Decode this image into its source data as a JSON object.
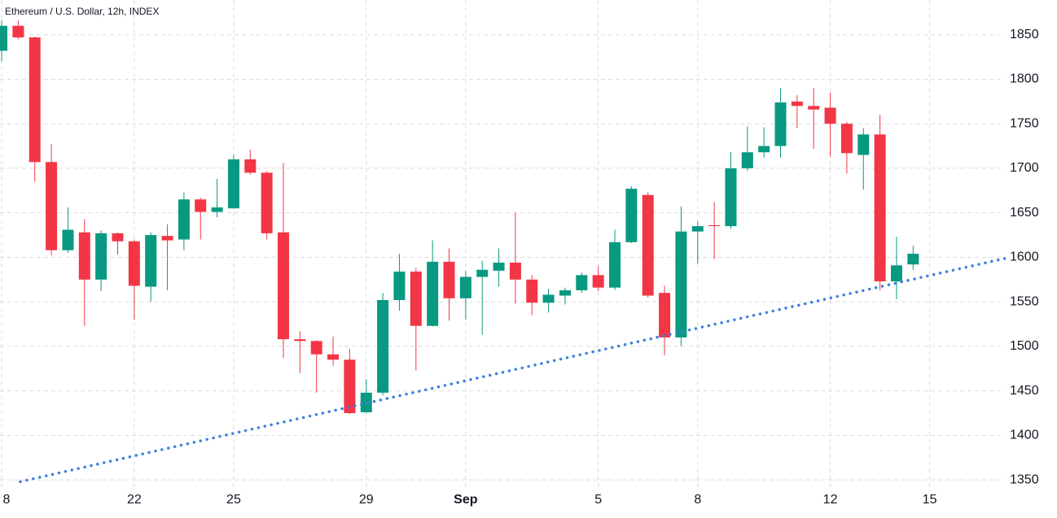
{
  "chart_data": {
    "type": "candlestick",
    "title": "Ethereum / U.S. Dollar, 12h, INDEX",
    "up_color": "#089981",
    "down_color": "#f23645",
    "x": [
      0,
      1,
      2,
      3,
      4,
      5,
      6,
      7,
      8,
      9,
      10,
      11,
      12,
      13,
      14,
      15,
      16,
      17,
      18,
      19,
      20,
      21,
      22,
      23,
      24,
      25,
      26,
      27,
      28,
      29,
      30,
      31,
      32,
      33,
      34,
      35,
      36,
      37,
      38,
      39,
      40,
      41,
      42,
      43,
      44,
      45,
      46,
      47,
      48,
      49,
      50,
      51,
      52,
      53,
      54,
      55
    ],
    "open": [
      1832,
      1860,
      1847,
      1707,
      1608,
      1628,
      1575,
      1627,
      1618,
      1567,
      1624,
      1620,
      1665,
      1651,
      1655,
      1710,
      1695,
      1628,
      1508,
      1506,
      1491,
      1485,
      1426,
      1448,
      1552,
      1584,
      1523,
      1595,
      1554,
      1578,
      1585,
      1594,
      1575,
      1549,
      1557,
      1563,
      1580,
      1566,
      1617,
      1670,
      1560,
      1510,
      1629,
      1636,
      1635,
      1700,
      1718,
      1725,
      1775,
      1770,
      1768,
      1750,
      1715,
      1738,
      1573,
      1592
    ],
    "high": [
      1866,
      1866,
      1848,
      1727,
      1656,
      1643,
      1630,
      1628,
      1620,
      1628,
      1637,
      1673,
      1667,
      1688,
      1715,
      1721,
      1697,
      1706,
      1517,
      1507,
      1511,
      1497,
      1463,
      1560,
      1604,
      1588,
      1619,
      1610,
      1585,
      1596,
      1610,
      1650,
      1580,
      1565,
      1566,
      1583,
      1590,
      1631,
      1680,
      1673,
      1568,
      1657,
      1640,
      1662,
      1718,
      1747,
      1746,
      1790,
      1782,
      1790,
      1785,
      1752,
      1745,
      1760,
      1623,
      1613
    ],
    "low": [
      1820,
      1845,
      1685,
      1602,
      1605,
      1523,
      1562,
      1603,
      1530,
      1550,
      1563,
      1608,
      1620,
      1645,
      1655,
      1693,
      1620,
      1487,
      1470,
      1448,
      1478,
      1424,
      1425,
      1445,
      1540,
      1473,
      1522,
      1529,
      1530,
      1513,
      1567,
      1548,
      1535,
      1538,
      1547,
      1560,
      1562,
      1563,
      1616,
      1555,
      1490,
      1500,
      1593,
      1598,
      1632,
      1697,
      1712,
      1712,
      1745,
      1722,
      1713,
      1694,
      1676,
      1563,
      1553,
      1586
    ],
    "close": [
      1860,
      1847,
      1707,
      1608,
      1631,
      1575,
      1627,
      1618,
      1568,
      1625,
      1619,
      1665,
      1651,
      1656,
      1710,
      1695,
      1627,
      1508,
      1506,
      1491,
      1485,
      1425,
      1448,
      1552,
      1584,
      1523,
      1595,
      1554,
      1578,
      1586,
      1594,
      1575,
      1549,
      1558,
      1563,
      1580,
      1566,
      1617,
      1677,
      1557,
      1510,
      1629,
      1635,
      1635,
      1700,
      1718,
      1725,
      1774,
      1770,
      1766,
      1750,
      1717,
      1738,
      1573,
      1591,
      1604
    ],
    "xlim": [
      -0.1,
      60.34
    ],
    "xticks": [
      {
        "value": 0,
        "label": "8"
      },
      {
        "value": 8,
        "label": "22"
      },
      {
        "value": 14,
        "label": "25"
      },
      {
        "value": 22,
        "label": "29"
      },
      {
        "value": 28,
        "label": "Sep"
      },
      {
        "value": 36,
        "label": "5"
      },
      {
        "value": 42,
        "label": "8"
      },
      {
        "value": 50,
        "label": "12"
      },
      {
        "value": 56,
        "label": "15"
      }
    ],
    "ylim": [
      1341,
      1889
    ],
    "yticks": [
      1350,
      1400,
      1450,
      1500,
      1550,
      1600,
      1650,
      1700,
      1750,
      1800,
      1850
    ],
    "grid": true,
    "trendline": {
      "x": [
        1.13,
        60.6
      ],
      "y": [
        1348,
        1599
      ],
      "color": "#3d7fe0"
    }
  }
}
